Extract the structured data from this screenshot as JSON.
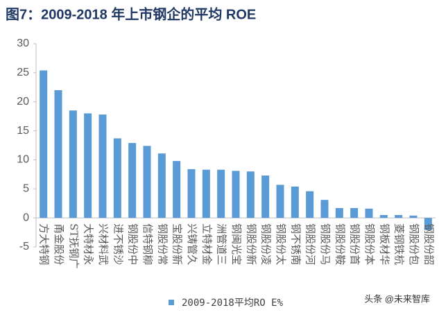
{
  "chart_data": {
    "type": "bar",
    "title": "图7：2009-2018 年上市钢企的平均 ROE",
    "categories": [
      "方大特钢",
      "甬金股份",
      "ST抚钢广",
      "大特材永",
      "兴材料武",
      "进不锈沙",
      "钢股份中",
      "信特钢柳",
      "钢股份常",
      "宝股份新",
      "兴铸管久",
      "立特材金",
      "洲管道三",
      "钢闽光宝",
      "钢股份新",
      "钢股份凌",
      "钢股份太",
      "钢不锈南",
      "钢股份河",
      "钢股份马",
      "钢股份鞍",
      "钢股份首",
      "钢股份本",
      "钢板材华",
      "菱钢铁杭",
      "钢股份包",
      "钢股份韶"
    ],
    "series": [
      {
        "name": "2009-2018平均RO E%",
        "color": "#5b9bd5",
        "values": [
          25.4,
          22,
          18.5,
          18,
          17.8,
          13.7,
          12.9,
          12.4,
          11.1,
          9.8,
          8.4,
          8.3,
          8.3,
          8.1,
          8.0,
          7.3,
          5.7,
          5.4,
          4.6,
          3.1,
          1.7,
          1.7,
          1.6,
          0.5,
          0.5,
          0.4,
          -2.1
        ]
      }
    ],
    "ylim": [
      -5,
      30
    ],
    "yticks": [
      -5,
      0,
      5,
      10,
      15,
      20,
      25,
      30
    ],
    "grid": false,
    "legend": "bottom",
    "annotation": "头条 @未来智库"
  }
}
